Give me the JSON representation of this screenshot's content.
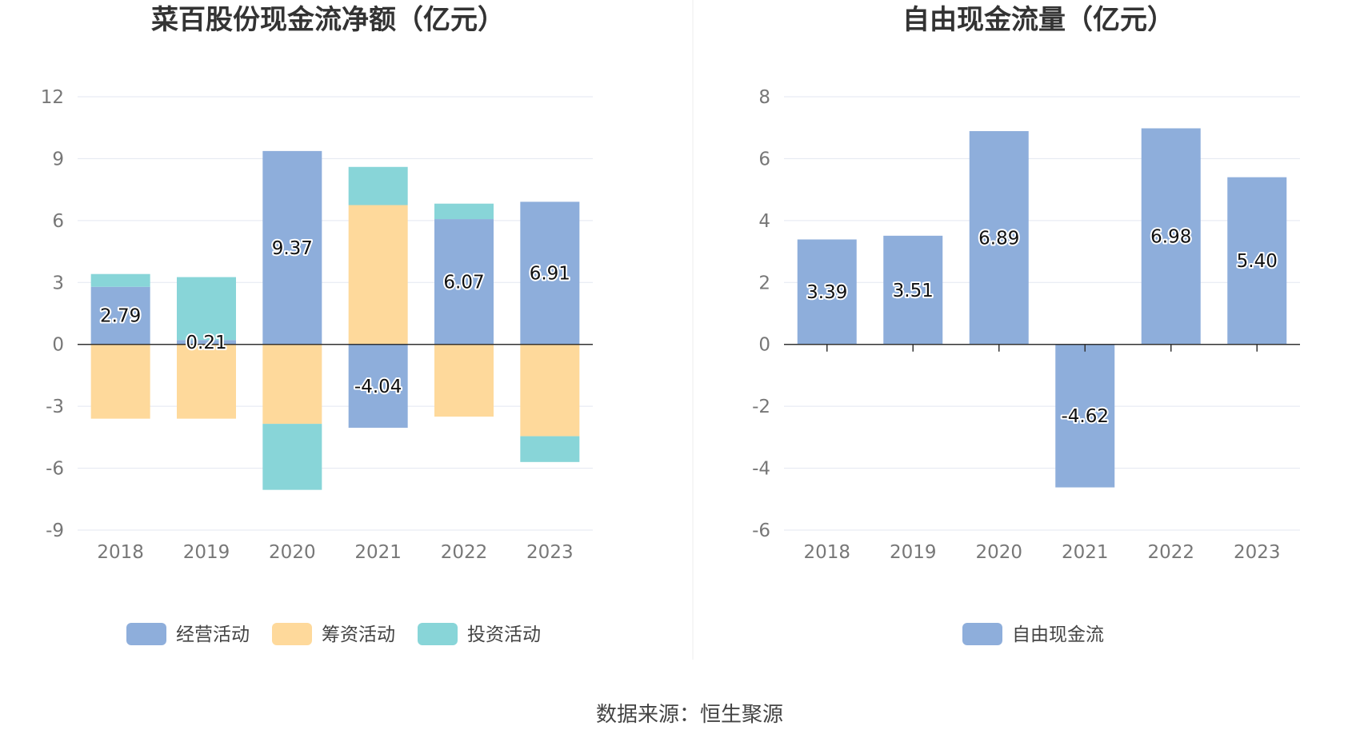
{
  "colors": {
    "operating": "#8eaedb",
    "financing": "#fed99b",
    "investing": "#88d5d8",
    "axis": "#333333",
    "grid": "#e3e7f1",
    "text": "#777777"
  },
  "source": "数据来源：恒生聚源",
  "chart_data": [
    {
      "type": "bar",
      "stacked": true,
      "title": "菜百股份现金流净额（亿元）",
      "categories": [
        "2018",
        "2019",
        "2020",
        "2021",
        "2022",
        "2023"
      ],
      "ylim": [
        -9,
        12
      ],
      "yticks": [
        12,
        9,
        6,
        3,
        0,
        -3,
        -6,
        -9
      ],
      "grid": true,
      "legend_position": "bottom",
      "series": [
        {
          "name": "经营活动",
          "color": "#8eaedb",
          "values": [
            2.79,
            0.21,
            9.37,
            -4.04,
            6.07,
            6.91
          ]
        },
        {
          "name": "筹资活动",
          "color": "#fed99b",
          "values": [
            -3.6,
            -3.6,
            -3.85,
            6.75,
            -3.5,
            -4.45
          ]
        },
        {
          "name": "投资活动",
          "color": "#88d5d8",
          "values": [
            0.62,
            3.05,
            -3.2,
            1.85,
            0.75,
            -1.25
          ]
        }
      ],
      "data_labels": [
        "2.79",
        "0.21",
        "9.37",
        "-4.04",
        "6.07",
        "6.91"
      ]
    },
    {
      "type": "bar",
      "title": "自由现金流量（亿元）",
      "categories": [
        "2018",
        "2019",
        "2020",
        "2021",
        "2022",
        "2023"
      ],
      "ylim": [
        -6,
        8
      ],
      "yticks": [
        8,
        6,
        4,
        2,
        0,
        -2,
        -4,
        -6
      ],
      "grid": true,
      "legend_position": "bottom",
      "series": [
        {
          "name": "自由现金流",
          "color": "#8eaedb",
          "values": [
            3.39,
            3.51,
            6.89,
            -4.62,
            6.98,
            5.4
          ]
        }
      ],
      "data_labels": [
        "3.39",
        "3.51",
        "6.89",
        "-4.62",
        "6.98",
        "5.40"
      ]
    }
  ]
}
